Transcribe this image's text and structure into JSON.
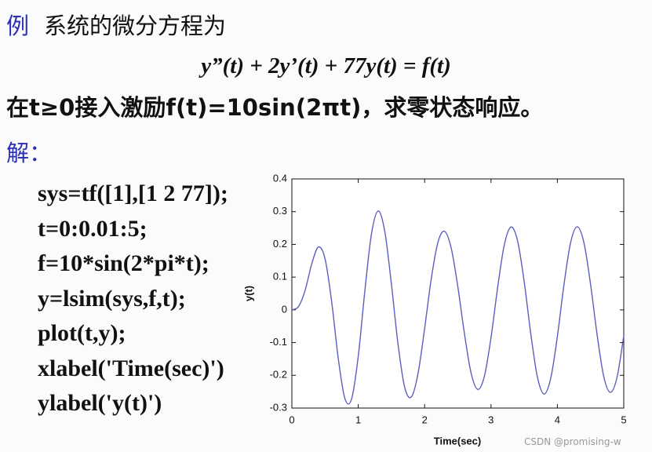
{
  "doc": {
    "example_label": "例",
    "intro": "系统的微分方程为",
    "equation": "y”(t) + 2y’(t) + 77y(t) = f(t)",
    "statement": "在t≥0接入激励f(t)=10sin(2πt)，求零状态响应。",
    "solution_label": "解：",
    "code_lines": [
      "sys=tf([1],[1 2 77]);",
      "t=0:0.01:5;",
      "f=10*sin(2*pi*t);",
      "y=lsim(sys,f,t);",
      "plot(t,y);",
      "xlabel('Time(sec)')",
      "ylabel('y(t)')"
    ],
    "watermark": "CSDN @promising-w"
  },
  "chart_data": {
    "type": "line",
    "x_label": "Time(sec)",
    "y_label": "y(t)",
    "x": [
      0,
      0.1,
      0.2,
      0.3,
      0.4,
      0.5,
      0.6,
      0.7,
      0.8,
      0.9,
      1,
      1.1,
      1.2,
      1.3,
      1.4,
      1.5,
      1.6,
      1.7,
      1.8,
      1.9,
      2,
      2.1,
      2.2,
      2.3,
      2.4,
      2.5,
      2.6,
      2.7,
      2.8,
      2.9,
      3,
      3.1,
      3.2,
      3.3,
      3.4,
      3.5,
      3.6,
      3.7,
      3.8,
      3.9,
      4,
      4.1,
      4.2,
      4.3,
      4.4,
      4.5,
      4.6,
      4.7,
      4.8,
      4.9,
      5
    ],
    "series": [
      {
        "color": "#5b5fbf",
        "values": [
          0,
          0.01,
          0.06,
          0.141,
          0.192,
          0.156,
          0.024,
          -0.15,
          -0.272,
          -0.272,
          -0.142,
          0.059,
          0.233,
          0.302,
          0.239,
          0.078,
          -0.106,
          -0.237,
          -0.266,
          -0.195,
          -0.057,
          0.095,
          0.206,
          0.24,
          0.189,
          0.071,
          -0.073,
          -0.193,
          -0.243,
          -0.203,
          -0.085,
          0.068,
          0.198,
          0.253,
          0.211,
          0.086,
          -0.074,
          -0.206,
          -0.257,
          -0.209,
          -0.081,
          0.078,
          0.206,
          0.254,
          0.205,
          0.078,
          -0.078,
          -0.205,
          -0.252,
          -0.205,
          -0.079
        ]
      }
    ],
    "xlim": [
      0,
      5
    ],
    "ylim": [
      -0.3,
      0.4
    ],
    "xticks": [
      0,
      1,
      2,
      3,
      4,
      5
    ],
    "yticks": [
      -0.3,
      -0.2,
      -0.1,
      0,
      0.1,
      0.2,
      0.3,
      0.4
    ],
    "grid": false
  }
}
